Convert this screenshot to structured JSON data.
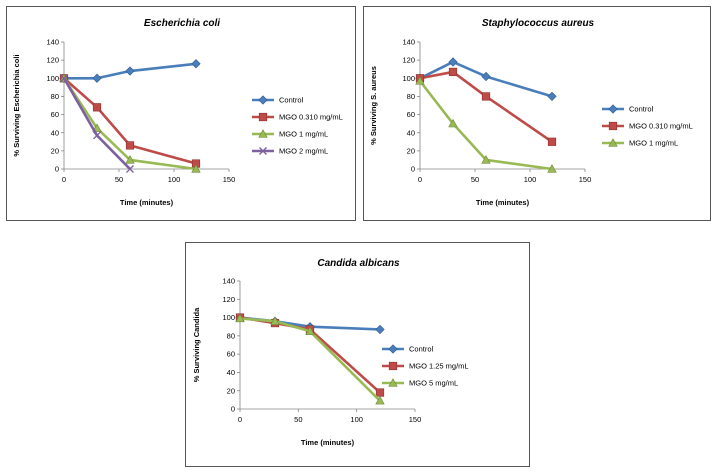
{
  "chart_data": [
    {
      "type": "line",
      "title": "Escherichia coli",
      "xlabel": "Time (minutes)",
      "ylabel": "% Surviving Escherichia coli",
      "xlim": [
        0,
        150
      ],
      "ylim": [
        0,
        140
      ],
      "xticks": [
        0,
        50,
        100,
        150
      ],
      "yticks": [
        0,
        20,
        40,
        60,
        80,
        100,
        120,
        140
      ],
      "x": [
        0,
        30,
        60,
        120
      ],
      "legend_position": "right",
      "grid": false,
      "series": [
        {
          "name": "Control",
          "values": [
            100,
            100,
            108,
            116
          ],
          "color": "#4a7ebb",
          "marker": "diamond"
        },
        {
          "name": "MGO 0.310 mg/mL",
          "values": [
            100,
            68,
            26,
            6
          ],
          "color": "#be4b48",
          "marker": "square"
        },
        {
          "name": "MGO 1 mg/mL",
          "values": [
            100,
            45,
            10,
            0
          ],
          "color": "#98b954",
          "marker": "triangle"
        },
        {
          "name": "MGO 2 mg/mL",
          "values": [
            100,
            37,
            0,
            null
          ],
          "color": "#7d60a0",
          "marker": "x"
        }
      ]
    },
    {
      "type": "line",
      "title": "Staphylococcus aureus",
      "xlabel": "Time (minutes)",
      "ylabel": "% Surviving S. aureus",
      "xlim": [
        0,
        150
      ],
      "ylim": [
        0,
        140
      ],
      "xticks": [
        0,
        50,
        100,
        150
      ],
      "yticks": [
        0,
        20,
        40,
        60,
        80,
        100,
        120,
        140
      ],
      "x": [
        0,
        30,
        60,
        120
      ],
      "legend_position": "right",
      "grid": false,
      "series": [
        {
          "name": "Control",
          "values": [
            100,
            118,
            102,
            80
          ],
          "color": "#4a7ebb",
          "marker": "diamond"
        },
        {
          "name": "MGO 0.310 mg/mL",
          "values": [
            100,
            107,
            80,
            30
          ],
          "color": "#be4b48",
          "marker": "square"
        },
        {
          "name": "MGO 1 mg/mL",
          "values": [
            97,
            50,
            10,
            0
          ],
          "color": "#98b954",
          "marker": "triangle"
        }
      ]
    },
    {
      "type": "line",
      "title": "Candida albicans",
      "xlabel": "Time (minutes)",
      "ylabel": "% Surviving Candida",
      "xlim": [
        0,
        150
      ],
      "ylim": [
        0,
        140
      ],
      "xticks": [
        0,
        50,
        100,
        150
      ],
      "yticks": [
        0,
        20,
        40,
        60,
        80,
        100,
        120,
        140
      ],
      "x": [
        0,
        30,
        60,
        120
      ],
      "legend_position": "right",
      "grid": false,
      "series": [
        {
          "name": "Control",
          "values": [
            100,
            96,
            90,
            87
          ],
          "color": "#4a7ebb",
          "marker": "diamond"
        },
        {
          "name": "MGO 1.25 mg/mL",
          "values": [
            100,
            94,
            87,
            18
          ],
          "color": "#be4b48",
          "marker": "square"
        },
        {
          "name": "MGO 5 mg/mL",
          "values": [
            99,
            96,
            85,
            9
          ],
          "color": "#98b954",
          "marker": "triangle"
        }
      ]
    }
  ]
}
